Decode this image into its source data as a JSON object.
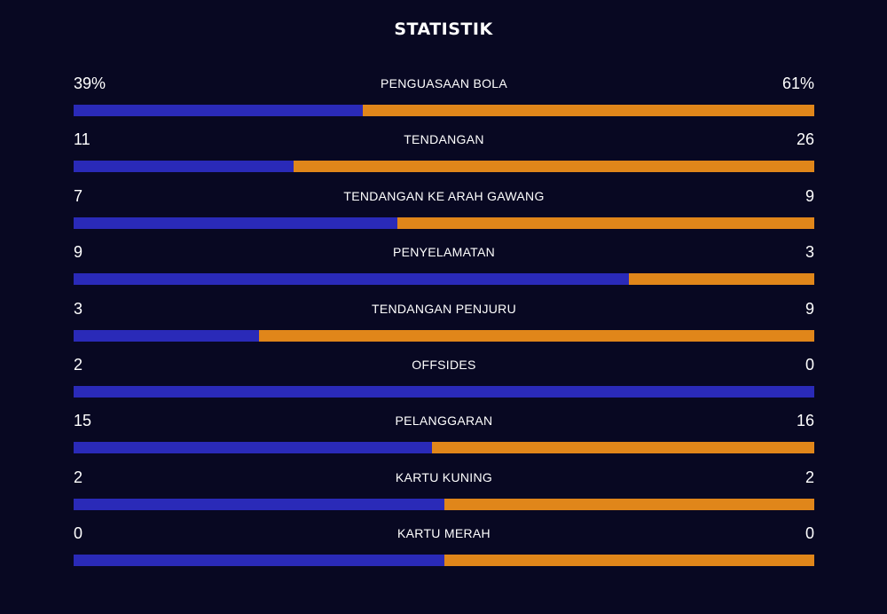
{
  "title": "STATISTIK",
  "colors": {
    "background": "#080822",
    "home": "#2a2ab8",
    "away": "#e0861a"
  },
  "stats": [
    {
      "label": "PENGUASAAN BOLA",
      "home": "39%",
      "away": "61%",
      "home_share": 0.39
    },
    {
      "label": "TENDANGAN",
      "home": "11",
      "away": "26",
      "home_share": 0.297
    },
    {
      "label": "TENDANGAN KE ARAH GAWANG",
      "home": "7",
      "away": "9",
      "home_share": 0.4375
    },
    {
      "label": "PENYELAMATAN",
      "home": "9",
      "away": "3",
      "home_share": 0.75
    },
    {
      "label": "TENDANGAN PENJURU",
      "home": "3",
      "away": "9",
      "home_share": 0.25
    },
    {
      "label": "OFFSIDES",
      "home": "2",
      "away": "0",
      "home_share": 1.0
    },
    {
      "label": "PELANGGARAN",
      "home": "15",
      "away": "16",
      "home_share": 0.484
    },
    {
      "label": "KARTU KUNING",
      "home": "2",
      "away": "2",
      "home_share": 0.5
    },
    {
      "label": "KARTU MERAH",
      "home": "0",
      "away": "0",
      "home_share": 0.5
    }
  ]
}
